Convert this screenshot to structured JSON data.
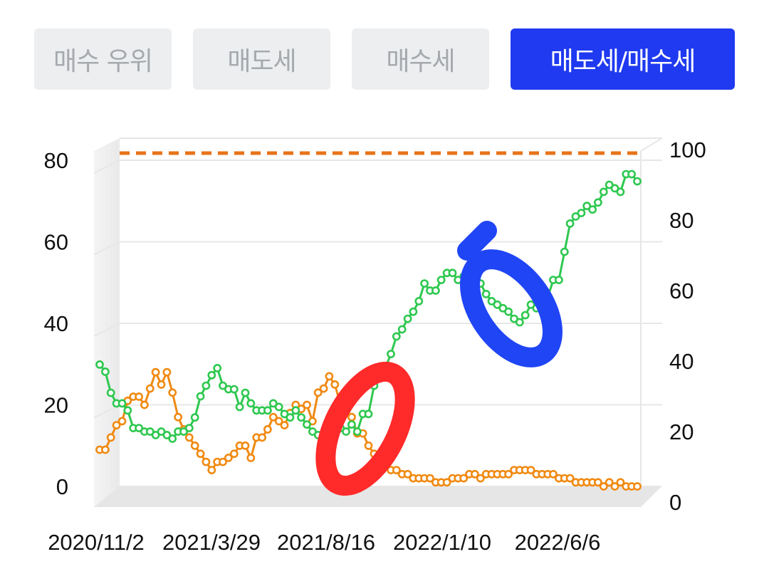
{
  "tabs": [
    {
      "label": "매수 우위",
      "active": false
    },
    {
      "label": "매도세",
      "active": false
    },
    {
      "label": "매수세",
      "active": false
    },
    {
      "label": "매도세/매수세",
      "active": true
    }
  ],
  "colors": {
    "tab_active": "#1f3af0",
    "tab_inactive": "#eceef0",
    "series_green": "#2ec84f",
    "series_orange": "#f08a12",
    "reference_line": "#e8731a",
    "annotation_red": "#ff2a2a",
    "annotation_blue": "#1f45f5"
  },
  "annotations": [
    {
      "shape": "hand-drawn ellipse",
      "color": "red",
      "near": "2021/10 crossover"
    },
    {
      "shape": "hand-drawn ellipse",
      "color": "blue",
      "near": "2022/3 dip"
    }
  ],
  "chart_data": {
    "type": "line",
    "title": "",
    "xlabel": "",
    "left_ylabel": "",
    "right_ylabel": "",
    "x_tick_labels": [
      "2020/11/2",
      "2021/3/29",
      "2021/8/16",
      "2022/1/10",
      "2022/6/6"
    ],
    "left_y_ticks": [
      "0",
      "20",
      "40",
      "60",
      "80"
    ],
    "right_y_ticks": [
      "0",
      "20",
      "40",
      "60",
      "80",
      "100"
    ],
    "left_ylim": [
      0,
      80
    ],
    "right_ylim": [
      0,
      100
    ],
    "grid": true,
    "style": "3d-box",
    "reference_line": {
      "axis": "right",
      "value": 100,
      "style": "dashed"
    },
    "series": [
      {
        "axis": "right",
        "color": "green",
        "point_marker": "hollow-circle",
        "values": [
          39,
          37,
          31,
          28,
          28,
          26,
          21,
          21,
          20,
          20,
          19,
          20,
          19,
          18,
          20,
          20,
          21,
          24,
          30,
          33,
          36,
          38,
          33,
          32,
          32,
          27,
          31,
          28,
          26,
          26,
          26,
          28,
          27,
          25,
          24,
          26,
          24,
          22,
          20,
          19,
          19,
          20,
          20,
          21,
          20,
          22,
          20,
          25,
          25,
          33,
          36,
          38,
          42,
          47,
          49,
          52,
          54,
          57,
          62,
          60,
          60,
          63,
          65,
          65,
          63,
          64,
          62,
          60,
          62,
          59,
          57,
          56,
          55,
          54,
          52,
          51,
          53,
          56,
          55,
          57,
          58,
          63,
          63,
          71,
          79,
          81,
          82,
          84,
          83,
          85,
          88,
          90,
          89,
          88,
          93,
          93,
          91
        ]
      },
      {
        "axis": "left",
        "color": "orange",
        "point_marker": "hollow-circle",
        "values": [
          9,
          9,
          12,
          15,
          16,
          21,
          22,
          22,
          20,
          24,
          28,
          25,
          28,
          23,
          17,
          14,
          12,
          10,
          8,
          6,
          4,
          6,
          6,
          7,
          8,
          10,
          10,
          7,
          12,
          12,
          14,
          17,
          16,
          15,
          18,
          20,
          19,
          20,
          16,
          23,
          24,
          27,
          25,
          20,
          18,
          17,
          13,
          13,
          10,
          8,
          6,
          5,
          4,
          4,
          3,
          3,
          2,
          2,
          2,
          2,
          1,
          1,
          1,
          2,
          2,
          2,
          3,
          3,
          2,
          3,
          3,
          3,
          3,
          3,
          4,
          4,
          4,
          4,
          3,
          3,
          3,
          3,
          2,
          2,
          2,
          1,
          1,
          1,
          1,
          1,
          0,
          1,
          0,
          1,
          0,
          0,
          0
        ]
      }
    ]
  }
}
